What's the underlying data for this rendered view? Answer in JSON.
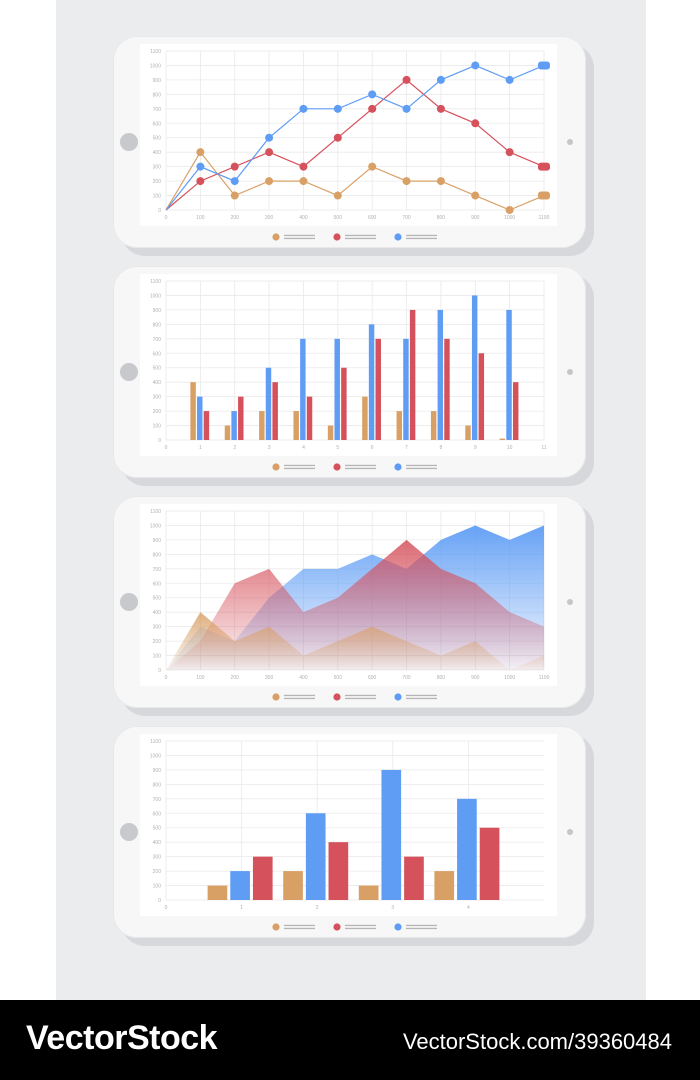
{
  "colors": {
    "orange": "#d9a066",
    "red": "#d5515c",
    "blue": "#5f9df5"
  },
  "footer": {
    "logo": "VectorStock",
    "id": "VectorStock.com/39360484"
  },
  "chart_data": [
    {
      "type": "line",
      "x": [
        0,
        100,
        200,
        300,
        400,
        500,
        600,
        700,
        800,
        900,
        1000,
        1100
      ],
      "xlim": [
        0,
        1100
      ],
      "ylim": [
        0,
        1100
      ],
      "yticks": [
        0,
        100,
        200,
        300,
        400,
        500,
        600,
        700,
        800,
        900,
        1000,
        1100
      ],
      "xticks": [
        0,
        100,
        200,
        300,
        400,
        500,
        600,
        700,
        800,
        900,
        1000,
        1100
      ],
      "grid": true,
      "legend": "bottom-center",
      "series": [
        {
          "color": "#d9a066",
          "values": [
            0,
            400,
            100,
            200,
            200,
            100,
            300,
            200,
            200,
            100,
            0,
            100
          ]
        },
        {
          "color": "#d5515c",
          "values": [
            0,
            200,
            300,
            400,
            300,
            500,
            700,
            900,
            700,
            600,
            400,
            300
          ]
        },
        {
          "color": "#5f9df5",
          "values": [
            0,
            300,
            200,
            500,
            700,
            700,
            800,
            700,
            900,
            1000,
            900,
            1000
          ]
        }
      ]
    },
    {
      "type": "bar",
      "categories": [
        1,
        2,
        3,
        4,
        5,
        6,
        7,
        8,
        9,
        10
      ],
      "xlim": [
        0,
        11
      ],
      "ylim": [
        0,
        1100
      ],
      "yticks": [
        0,
        100,
        200,
        300,
        400,
        500,
        600,
        700,
        800,
        900,
        1000,
        1100
      ],
      "xticks": [
        0,
        1,
        2,
        3,
        4,
        5,
        6,
        7,
        8,
        9,
        10,
        11
      ],
      "grid": true,
      "legend": "bottom-center",
      "series": [
        {
          "color": "#d9a066",
          "values": [
            400,
            100,
            200,
            200,
            100,
            300,
            200,
            200,
            100,
            10
          ]
        },
        {
          "color": "#5f9df5",
          "values": [
            300,
            200,
            500,
            700,
            700,
            800,
            700,
            900,
            1000,
            900
          ]
        },
        {
          "color": "#d5515c",
          "values": [
            200,
            300,
            400,
            300,
            500,
            700,
            900,
            700,
            600,
            400
          ]
        }
      ]
    },
    {
      "type": "area",
      "x": [
        0,
        100,
        200,
        300,
        400,
        500,
        600,
        700,
        800,
        900,
        1000,
        1100
      ],
      "xlim": [
        0,
        1100
      ],
      "ylim": [
        0,
        1100
      ],
      "yticks": [
        0,
        100,
        200,
        300,
        400,
        500,
        600,
        700,
        800,
        900,
        1000,
        1100
      ],
      "xticks": [
        0,
        100,
        200,
        300,
        400,
        500,
        600,
        700,
        800,
        900,
        1000,
        1100
      ],
      "grid": true,
      "legend": "bottom-center",
      "series": [
        {
          "color": "#5f9df5",
          "values": [
            0,
            300,
            200,
            500,
            700,
            700,
            800,
            700,
            900,
            1000,
            900,
            1000
          ]
        },
        {
          "color": "#d5515c",
          "values": [
            0,
            200,
            600,
            700,
            400,
            500,
            700,
            900,
            700,
            600,
            400,
            300
          ]
        },
        {
          "color": "#d9a066",
          "values": [
            0,
            400,
            200,
            300,
            100,
            200,
            300,
            200,
            100,
            200,
            0,
            100
          ]
        }
      ]
    },
    {
      "type": "bar",
      "categories": [
        1,
        2,
        3,
        4
      ],
      "xlim": [
        0,
        5
      ],
      "ylim": [
        0,
        1100
      ],
      "yticks": [
        0,
        100,
        200,
        300,
        400,
        500,
        600,
        700,
        800,
        900,
        1000,
        1100
      ],
      "xticks": [
        0,
        1,
        2,
        3,
        4
      ],
      "grid": true,
      "legend": "bottom-center",
      "series": [
        {
          "color": "#d9a066",
          "values": [
            100,
            200,
            100,
            200
          ]
        },
        {
          "color": "#5f9df5",
          "values": [
            200,
            600,
            900,
            700
          ]
        },
        {
          "color": "#d5515c",
          "values": [
            300,
            400,
            300,
            500
          ]
        }
      ]
    }
  ]
}
